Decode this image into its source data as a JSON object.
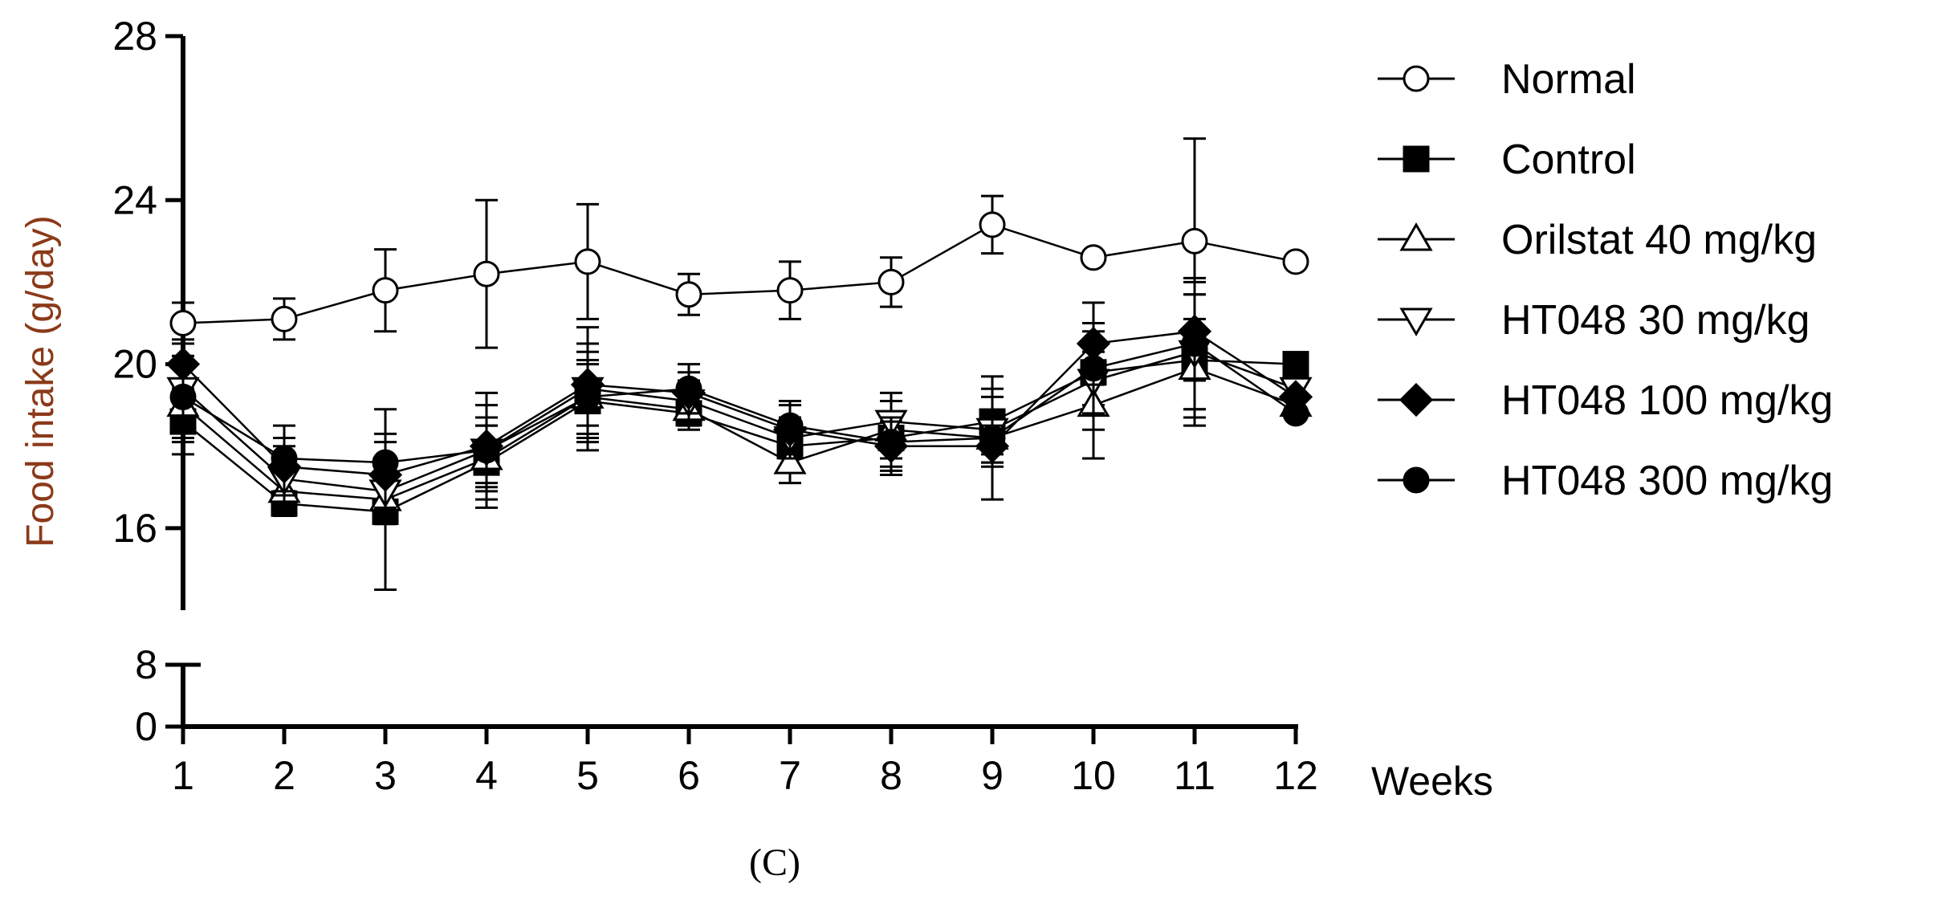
{
  "chart_data": {
    "type": "line",
    "title": "",
    "xlabel": "Weeks",
    "ylabel": "Food intake (g/day)",
    "caption": "(C)",
    "x": [
      1,
      2,
      3,
      4,
      5,
      6,
      7,
      8,
      9,
      10,
      11,
      12
    ],
    "x_ticks": [
      "1",
      "2",
      "3",
      "4",
      "5",
      "6",
      "7",
      "8",
      "9",
      "10",
      "11",
      "12"
    ],
    "y_ticks_upper": [
      "16",
      "20",
      "24",
      "28"
    ],
    "y_ticks_lower": [
      "0",
      "8"
    ],
    "ylim_upper": [
      14,
      28
    ],
    "ylim_lower": [
      0,
      8
    ],
    "axis_break": true,
    "grid": false,
    "legend_position": "right",
    "series": [
      {
        "name": "Normal",
        "marker": "circle-open",
        "values": [
          21.0,
          21.1,
          21.8,
          22.2,
          22.5,
          21.7,
          21.8,
          22.0,
          23.4,
          22.6,
          23.0,
          22.5
        ],
        "errors": [
          0.5,
          0.5,
          1.0,
          1.8,
          1.4,
          0.5,
          0.7,
          0.6,
          0.7,
          0.0,
          2.5,
          0.0
        ]
      },
      {
        "name": "Control",
        "marker": "square-filled",
        "values": [
          18.6,
          16.6,
          16.4,
          17.6,
          19.1,
          18.8,
          18.0,
          18.2,
          18.6,
          19.8,
          20.1,
          20.0
        ],
        "errors": [
          0.8,
          0.3,
          1.9,
          0.9,
          0.9,
          0.4,
          0.5,
          0.9,
          0.8,
          0.8,
          1.6,
          0.0
        ]
      },
      {
        "name": "Orilstat 40 mg/kg",
        "marker": "triangle-up-open",
        "values": [
          19.0,
          16.9,
          16.7,
          17.7,
          19.2,
          18.9,
          17.6,
          18.4,
          18.2,
          19.0,
          19.9,
          19.0
        ],
        "errors": [
          0.9,
          0.6,
          0.6,
          0.8,
          0.9,
          0.4,
          0.5,
          0.7,
          0.6,
          1.3,
          1.2,
          0.0
        ]
      },
      {
        "name": "HT048 30 mg/kg",
        "marker": "triangle-down-open",
        "values": [
          19.4,
          17.2,
          16.9,
          17.9,
          19.4,
          19.1,
          18.2,
          18.6,
          18.4,
          19.6,
          20.3,
          19.4
        ],
        "errors": [
          0.8,
          0.8,
          0.7,
          0.8,
          0.9,
          0.5,
          0.5,
          0.7,
          0.8,
          1.2,
          1.4,
          0.0
        ]
      },
      {
        "name": "HT048 100 mg/kg",
        "marker": "diamond-filled",
        "values": [
          20.0,
          17.5,
          17.3,
          18.0,
          19.5,
          19.3,
          18.4,
          18.0,
          18.0,
          20.5,
          20.8,
          19.2
        ],
        "errors": [
          0.6,
          0.7,
          0.8,
          1.0,
          1.4,
          0.5,
          0.6,
          0.6,
          0.5,
          1.0,
          1.2,
          0.0
        ]
      },
      {
        "name": "HT048 300 mg/kg",
        "marker": "circle-filled",
        "values": [
          19.2,
          17.7,
          17.6,
          17.9,
          19.2,
          19.4,
          18.5,
          18.1,
          18.2,
          19.9,
          20.5,
          18.8
        ],
        "errors": [
          1.0,
          0.8,
          1.3,
          1.4,
          1.3,
          0.6,
          0.6,
          0.6,
          1.5,
          1.1,
          1.6,
          0.0
        ]
      }
    ]
  }
}
